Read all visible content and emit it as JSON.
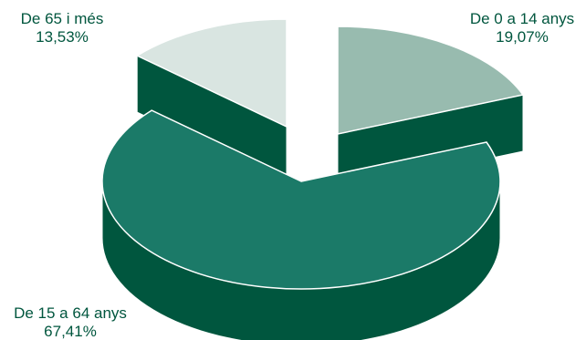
{
  "chart_data": {
    "type": "pie",
    "style": "3d-exploded",
    "legend": "none",
    "slices": [
      {
        "label": "De 0 a 14 anys",
        "value": 19.07,
        "value_label": "19,07%"
      },
      {
        "label": "De 15 a 64 anys",
        "value": 67.41,
        "value_label": "67,41%"
      },
      {
        "label": "De 65 i més",
        "value": 13.53,
        "value_label": "13,53%"
      }
    ]
  },
  "colors": {
    "slice_0_top": "#98bbaf",
    "slice_1_top": "#1b7a68",
    "slice_2_top": "#d9e5e1",
    "side": "#00563e",
    "label_text": "#00563e"
  }
}
